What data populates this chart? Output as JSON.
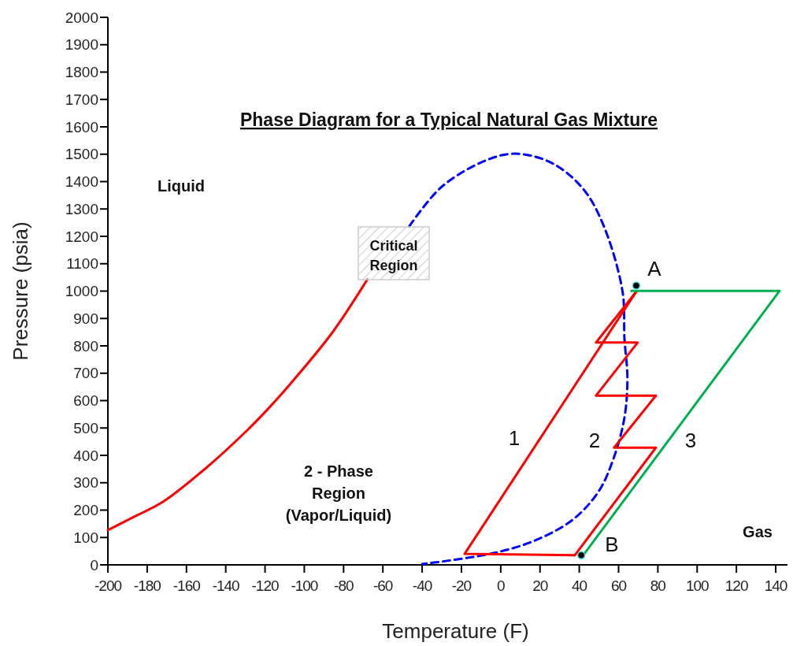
{
  "chart_data": {
    "type": "line",
    "title": "Phase Diagram for a Typical Natural Gas Mixture",
    "xlabel": "Temperature (F)",
    "ylabel": "Pressure (psia)",
    "xlim": [
      -200,
      146
    ],
    "ylim": [
      0,
      2000
    ],
    "xticks": [
      -200,
      -180,
      -160,
      -140,
      -120,
      -100,
      -80,
      -60,
      -40,
      -20,
      0,
      20,
      40,
      60,
      80,
      100,
      120,
      140
    ],
    "yticks": [
      0,
      100,
      200,
      300,
      400,
      500,
      600,
      700,
      800,
      900,
      1000,
      1100,
      1200,
      1300,
      1400,
      1500,
      1600,
      1700,
      1800,
      1900,
      2000
    ],
    "grid": false,
    "series": [
      {
        "color": "#ff0000",
        "line_style": "solid",
        "x": [
          -200,
          -186,
          -172,
          -150,
          -129,
          -117.4,
          -107,
          -86,
          -69,
          -68
        ],
        "values": [
          127,
          178,
          230,
          354,
          492,
          578,
          662,
          846,
          1030,
          1042
        ]
      },
      {
        "color": "#0000ff",
        "line_style": "dashed",
        "x": [
          -46.5,
          -30.5,
          -9,
          7,
          26,
          42,
          52.5,
          62,
          63,
          64.5,
          63,
          57.7,
          50,
          36.5,
          16.4,
          -3.6,
          -30,
          -40
        ],
        "values": [
          1237,
          1378,
          1473,
          1502,
          1468,
          1373,
          1237,
          999,
          826,
          682,
          538,
          394,
          270,
          164,
          86,
          43,
          12,
          3
        ]
      },
      {
        "color": "#ff0000",
        "line_style": "solid",
        "x": [
          69,
          -18.4,
          37.7
        ],
        "values": [
          998,
          40,
          35
        ]
      },
      {
        "color": "#ff0000",
        "line_style": "solid",
        "x": [
          37.7,
          79,
          57.7,
          79,
          48.5,
          69.7,
          48.5,
          69
        ],
        "values": [
          35,
          428,
          428,
          618,
          618,
          812,
          812,
          998
        ]
      },
      {
        "color": "#00b050",
        "line_style": "solid",
        "x": [
          66.5,
          142,
          42
        ],
        "values": [
          1001,
          1001,
          35
        ]
      },
      {
        "type": "scatter",
        "color": "#000000",
        "marker": "circle",
        "x": [
          69,
          41
        ],
        "values": [
          1020,
          35
        ]
      }
    ],
    "annotations": [
      "1",
      "2",
      "3",
      "A",
      "B",
      "Critical\nRegion",
      "Liquid",
      "2 - Phase\nRegion\n(Vapor/Liquid)",
      "Gas"
    ]
  }
}
